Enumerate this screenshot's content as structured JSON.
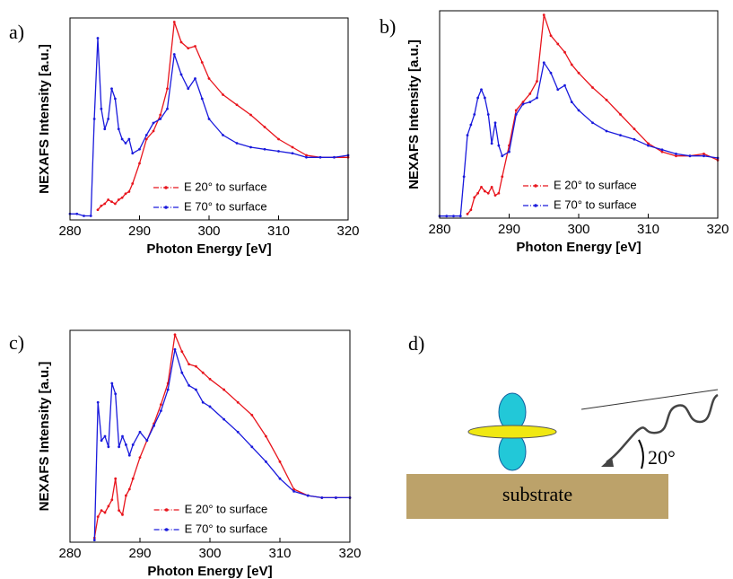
{
  "chart_data": [
    {
      "type": "line",
      "panel": "a)",
      "xlabel": "Photon Energy [eV]",
      "ylabel": "NEXAFS Intensity [a.u.]",
      "x": [
        280,
        281,
        282,
        283,
        283.5,
        284,
        284.5,
        285,
        285.5,
        286,
        286.5,
        287,
        287.5,
        288,
        288.5,
        289,
        290,
        291,
        292,
        293,
        294,
        295,
        296,
        297,
        298,
        299,
        300,
        302,
        304,
        306,
        308,
        310,
        312,
        314,
        316,
        318,
        320
      ],
      "xlim": [
        280,
        320
      ],
      "xticks": [
        280,
        290,
        300,
        310,
        320
      ],
      "ylim": [
        0,
        1
      ],
      "series": [
        {
          "name": "E 20° to surface",
          "color": "#e8141c",
          "values": [
            null,
            null,
            null,
            null,
            null,
            0.05,
            0.07,
            0.08,
            0.1,
            0.09,
            0.08,
            0.1,
            0.11,
            0.13,
            0.14,
            0.18,
            0.28,
            0.4,
            0.44,
            0.52,
            0.65,
            0.98,
            0.88,
            0.85,
            0.86,
            0.78,
            0.7,
            0.62,
            0.57,
            0.52,
            0.46,
            0.4,
            0.36,
            0.32,
            0.31,
            0.31,
            0.31
          ]
        },
        {
          "name": "E 70° to surface",
          "color": "#1a1adc",
          "values": [
            0.03,
            0.03,
            0.02,
            0.02,
            0.5,
            0.9,
            0.55,
            0.45,
            0.5,
            0.65,
            0.6,
            0.45,
            0.4,
            0.38,
            0.4,
            0.33,
            0.35,
            0.42,
            0.48,
            0.5,
            0.55,
            0.82,
            0.72,
            0.65,
            0.7,
            0.6,
            0.5,
            0.42,
            0.38,
            0.36,
            0.35,
            0.34,
            0.33,
            0.31,
            0.31,
            0.31,
            0.32
          ]
        }
      ]
    },
    {
      "type": "line",
      "panel": "b)",
      "xlabel": "Photon Energy [eV]",
      "ylabel": "NEXAFS Intensity [a.u.]",
      "x": [
        280,
        281,
        282,
        283,
        283.5,
        284,
        284.5,
        285,
        285.5,
        286,
        286.5,
        287,
        287.5,
        288,
        288.5,
        289,
        290,
        291,
        292,
        293,
        294,
        295,
        296,
        297,
        298,
        299,
        300,
        302,
        304,
        306,
        308,
        310,
        312,
        314,
        316,
        318,
        320
      ],
      "xlim": [
        280,
        320
      ],
      "xticks": [
        280,
        290,
        300,
        310,
        320
      ],
      "ylim": [
        0,
        1
      ],
      "series": [
        {
          "name": "E 20° to surface",
          "color": "#e8141c",
          "values": [
            null,
            null,
            null,
            null,
            null,
            0.02,
            0.04,
            0.1,
            0.12,
            0.15,
            0.13,
            0.12,
            0.15,
            0.11,
            0.12,
            0.2,
            0.35,
            0.52,
            0.56,
            0.6,
            0.66,
            0.98,
            0.88,
            0.84,
            0.8,
            0.74,
            0.7,
            0.63,
            0.57,
            0.5,
            0.43,
            0.36,
            0.32,
            0.3,
            0.3,
            0.31,
            0.28
          ]
        },
        {
          "name": "E 70° to surface",
          "color": "#1a1adc",
          "values": [
            0.01,
            0.01,
            0.01,
            0.01,
            0.2,
            0.4,
            0.45,
            0.5,
            0.58,
            0.62,
            0.58,
            0.5,
            0.36,
            0.46,
            0.35,
            0.3,
            0.32,
            0.5,
            0.55,
            0.56,
            0.58,
            0.75,
            0.7,
            0.62,
            0.64,
            0.56,
            0.52,
            0.46,
            0.42,
            0.4,
            0.38,
            0.35,
            0.33,
            0.31,
            0.3,
            0.3,
            0.29
          ]
        }
      ]
    },
    {
      "type": "line",
      "panel": "c)",
      "xlabel": "Photon Energy [eV]",
      "ylabel": "NEXAFS Intensity [a.u.]",
      "x": [
        280,
        281,
        282,
        283,
        283.5,
        284,
        284.5,
        285,
        285.5,
        286,
        286.5,
        287,
        287.5,
        288,
        288.5,
        289,
        290,
        291,
        292,
        293,
        294,
        295,
        296,
        297,
        298,
        299,
        300,
        302,
        304,
        306,
        308,
        310,
        312,
        314,
        316,
        318,
        320
      ],
      "xlim": [
        280,
        320
      ],
      "xticks": [
        280,
        290,
        300,
        310,
        320
      ],
      "ylim": [
        0,
        1
      ],
      "series": [
        {
          "name": "E 20° to surface",
          "color": "#e8141c",
          "values": [
            null,
            null,
            null,
            null,
            0.02,
            0.12,
            0.15,
            0.14,
            0.17,
            0.2,
            0.3,
            0.15,
            0.13,
            0.22,
            0.25,
            0.3,
            0.4,
            0.48,
            0.56,
            0.65,
            0.75,
            0.98,
            0.9,
            0.84,
            0.83,
            0.8,
            0.77,
            0.72,
            0.66,
            0.6,
            0.5,
            0.38,
            0.25,
            0.22,
            0.21,
            0.21,
            0.21
          ]
        },
        {
          "name": "E 70° to surface",
          "color": "#1a1adc",
          "values": [
            null,
            null,
            null,
            null,
            0.01,
            0.66,
            0.48,
            0.5,
            0.45,
            0.75,
            0.7,
            0.45,
            0.5,
            0.46,
            0.41,
            0.46,
            0.52,
            0.48,
            0.55,
            0.62,
            0.72,
            0.91,
            0.8,
            0.74,
            0.72,
            0.66,
            0.64,
            0.58,
            0.52,
            0.45,
            0.38,
            0.3,
            0.24,
            0.22,
            0.21,
            0.21,
            0.21
          ]
        }
      ]
    }
  ],
  "diagram": {
    "panel": "d)",
    "substrate": "substrate",
    "angle": "20°"
  }
}
